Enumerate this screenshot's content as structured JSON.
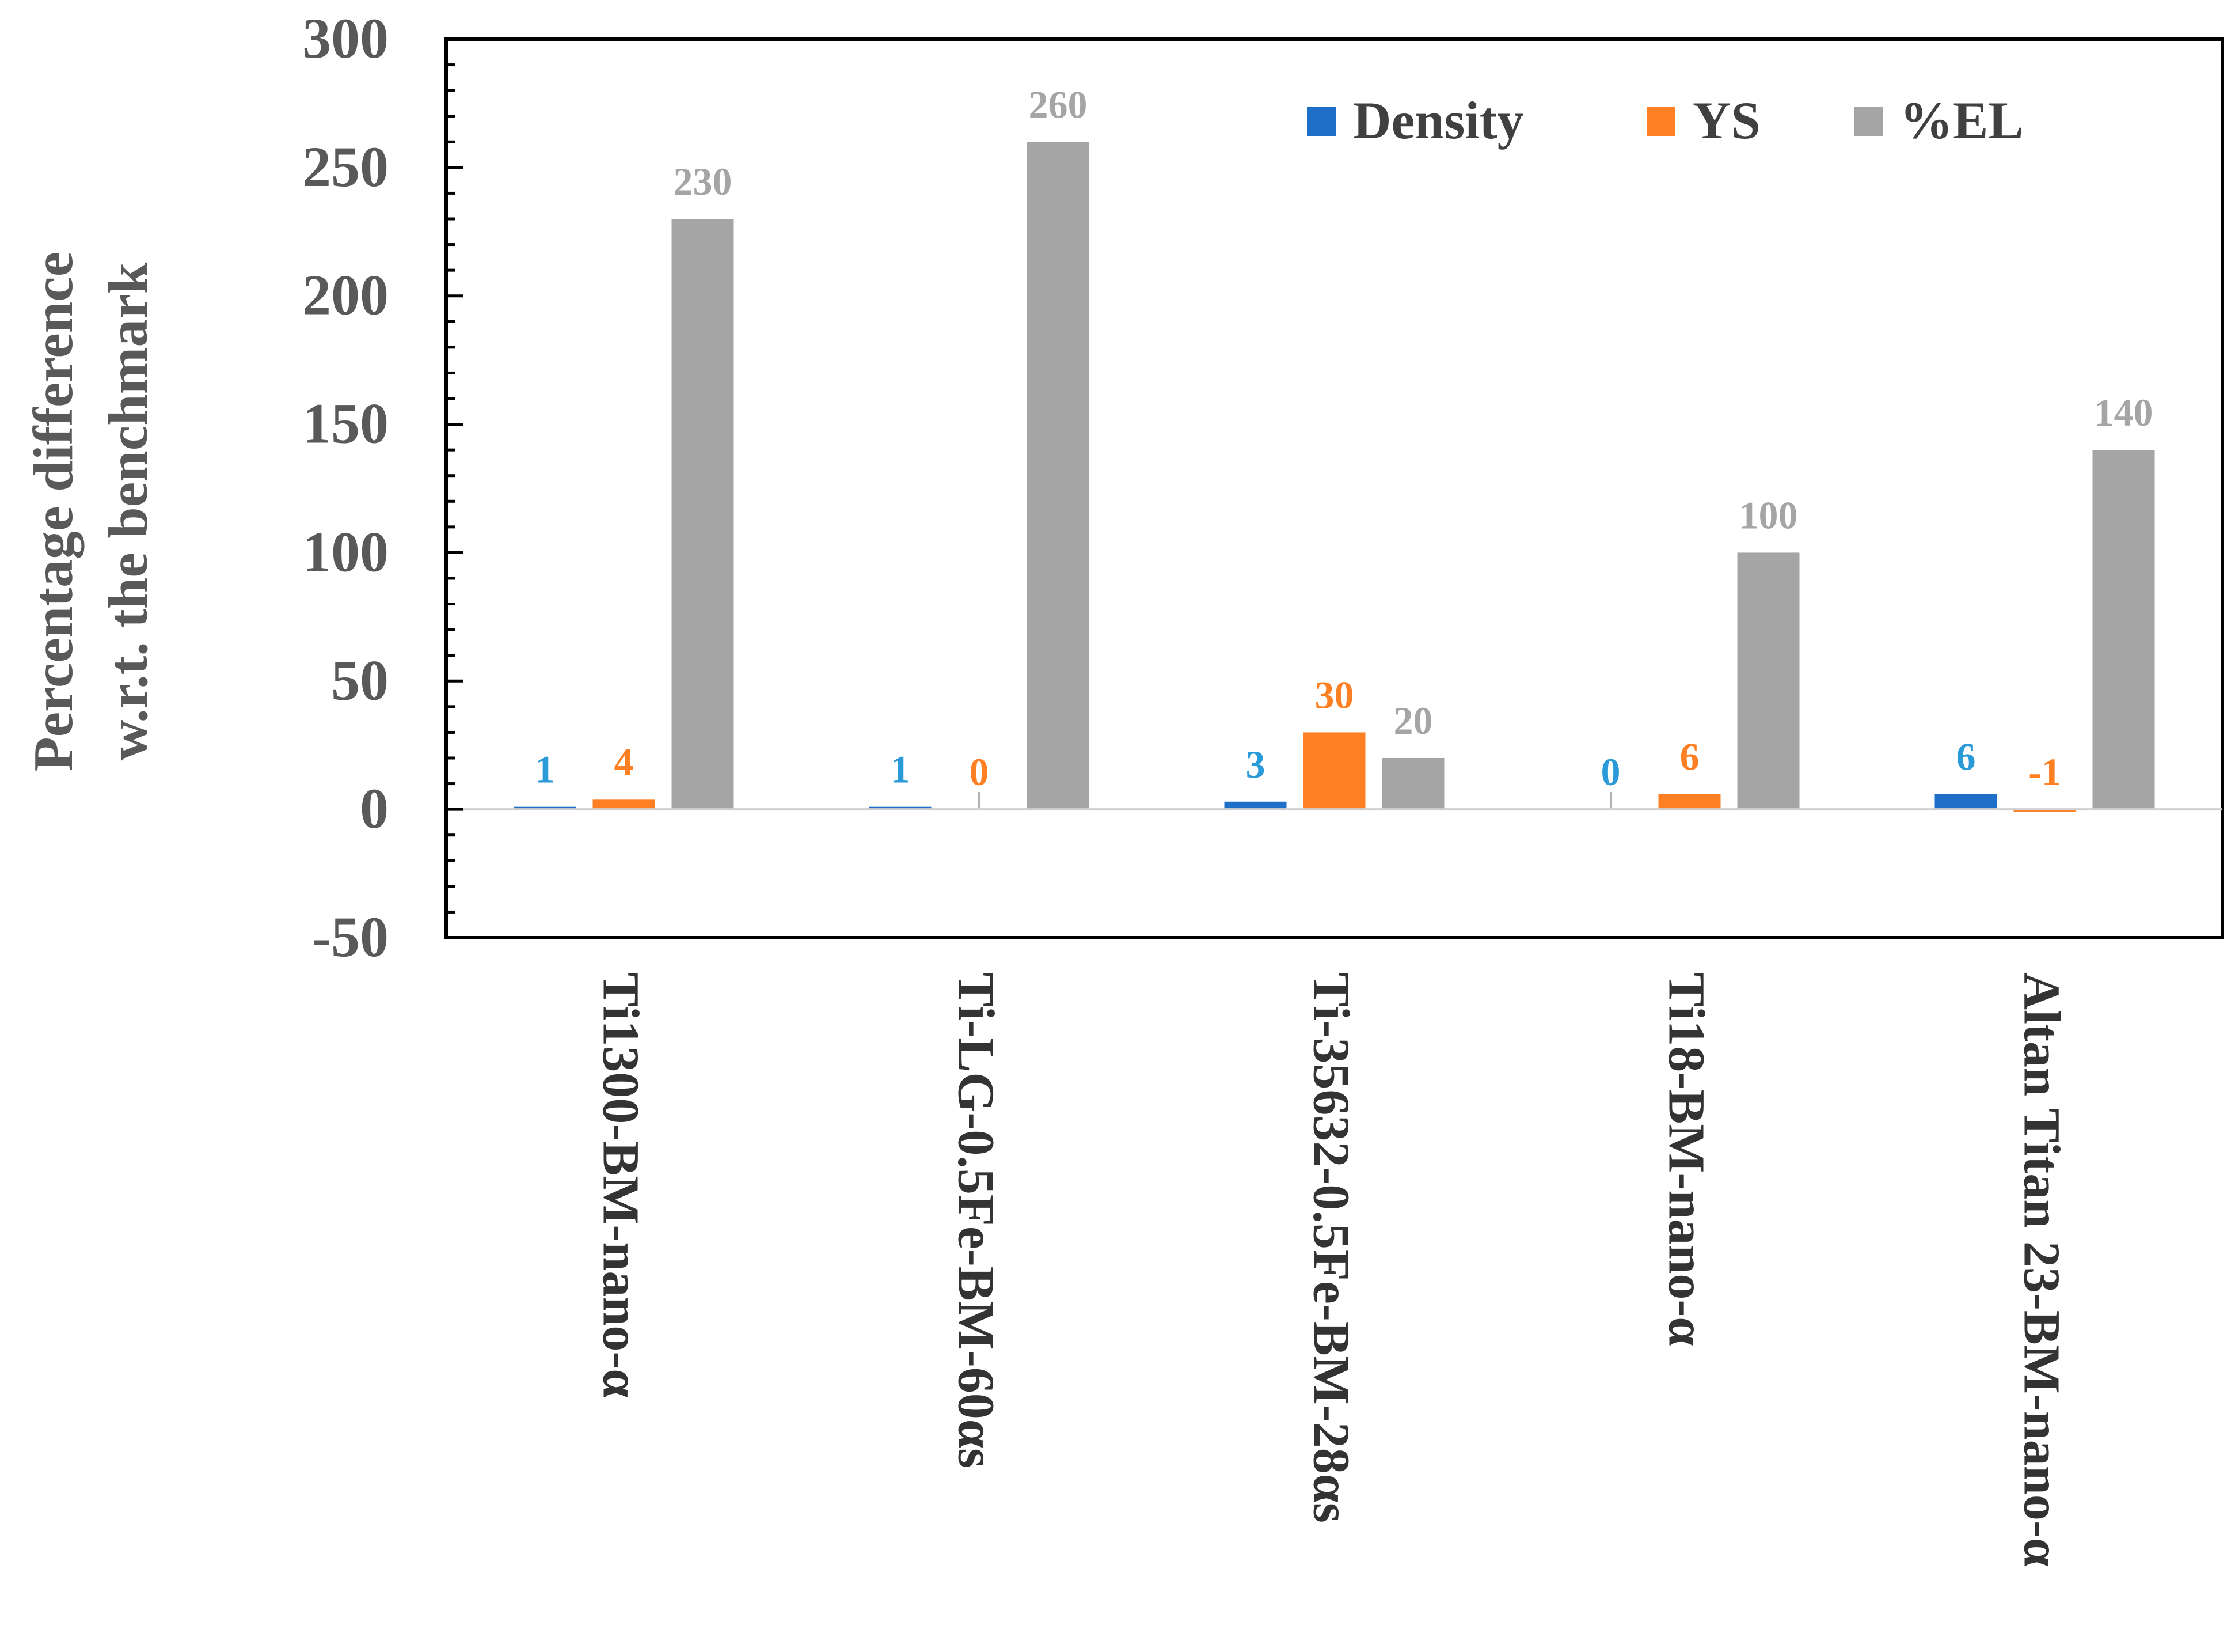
{
  "chart_data": {
    "type": "bar",
    "title": "",
    "xlabel": "",
    "ylabel_line1": "Percentage difference",
    "ylabel_line2": "w.r.t. the benchmark",
    "ylim": [
      -50,
      300
    ],
    "yticks": [
      -50,
      0,
      50,
      100,
      150,
      200,
      250,
      300
    ],
    "grid": false,
    "legend_position": "top-right",
    "categories": [
      "Ti1300-BM-nano-α",
      "Ti-LG-0.5Fe-BM-60αs",
      "Ti-35632-0.5Fe-BM-28αs",
      "Ti18-BM-nano-α",
      "Altan Titan 23-BM-nano-α"
    ],
    "series": [
      {
        "name": "Density",
        "values": [
          1,
          1,
          3,
          0,
          6
        ],
        "color": "#1f6fc8",
        "label_color": "#2a9ad8"
      },
      {
        "name": "YS",
        "values": [
          4,
          0,
          30,
          6,
          -1
        ],
        "color": "#ff8023",
        "label_color": "#ff8023"
      },
      {
        "name": "%EL",
        "values": [
          230,
          260,
          20,
          100,
          140
        ],
        "color": "#a5a5a5",
        "label_color": "#a5a5a5"
      }
    ]
  }
}
